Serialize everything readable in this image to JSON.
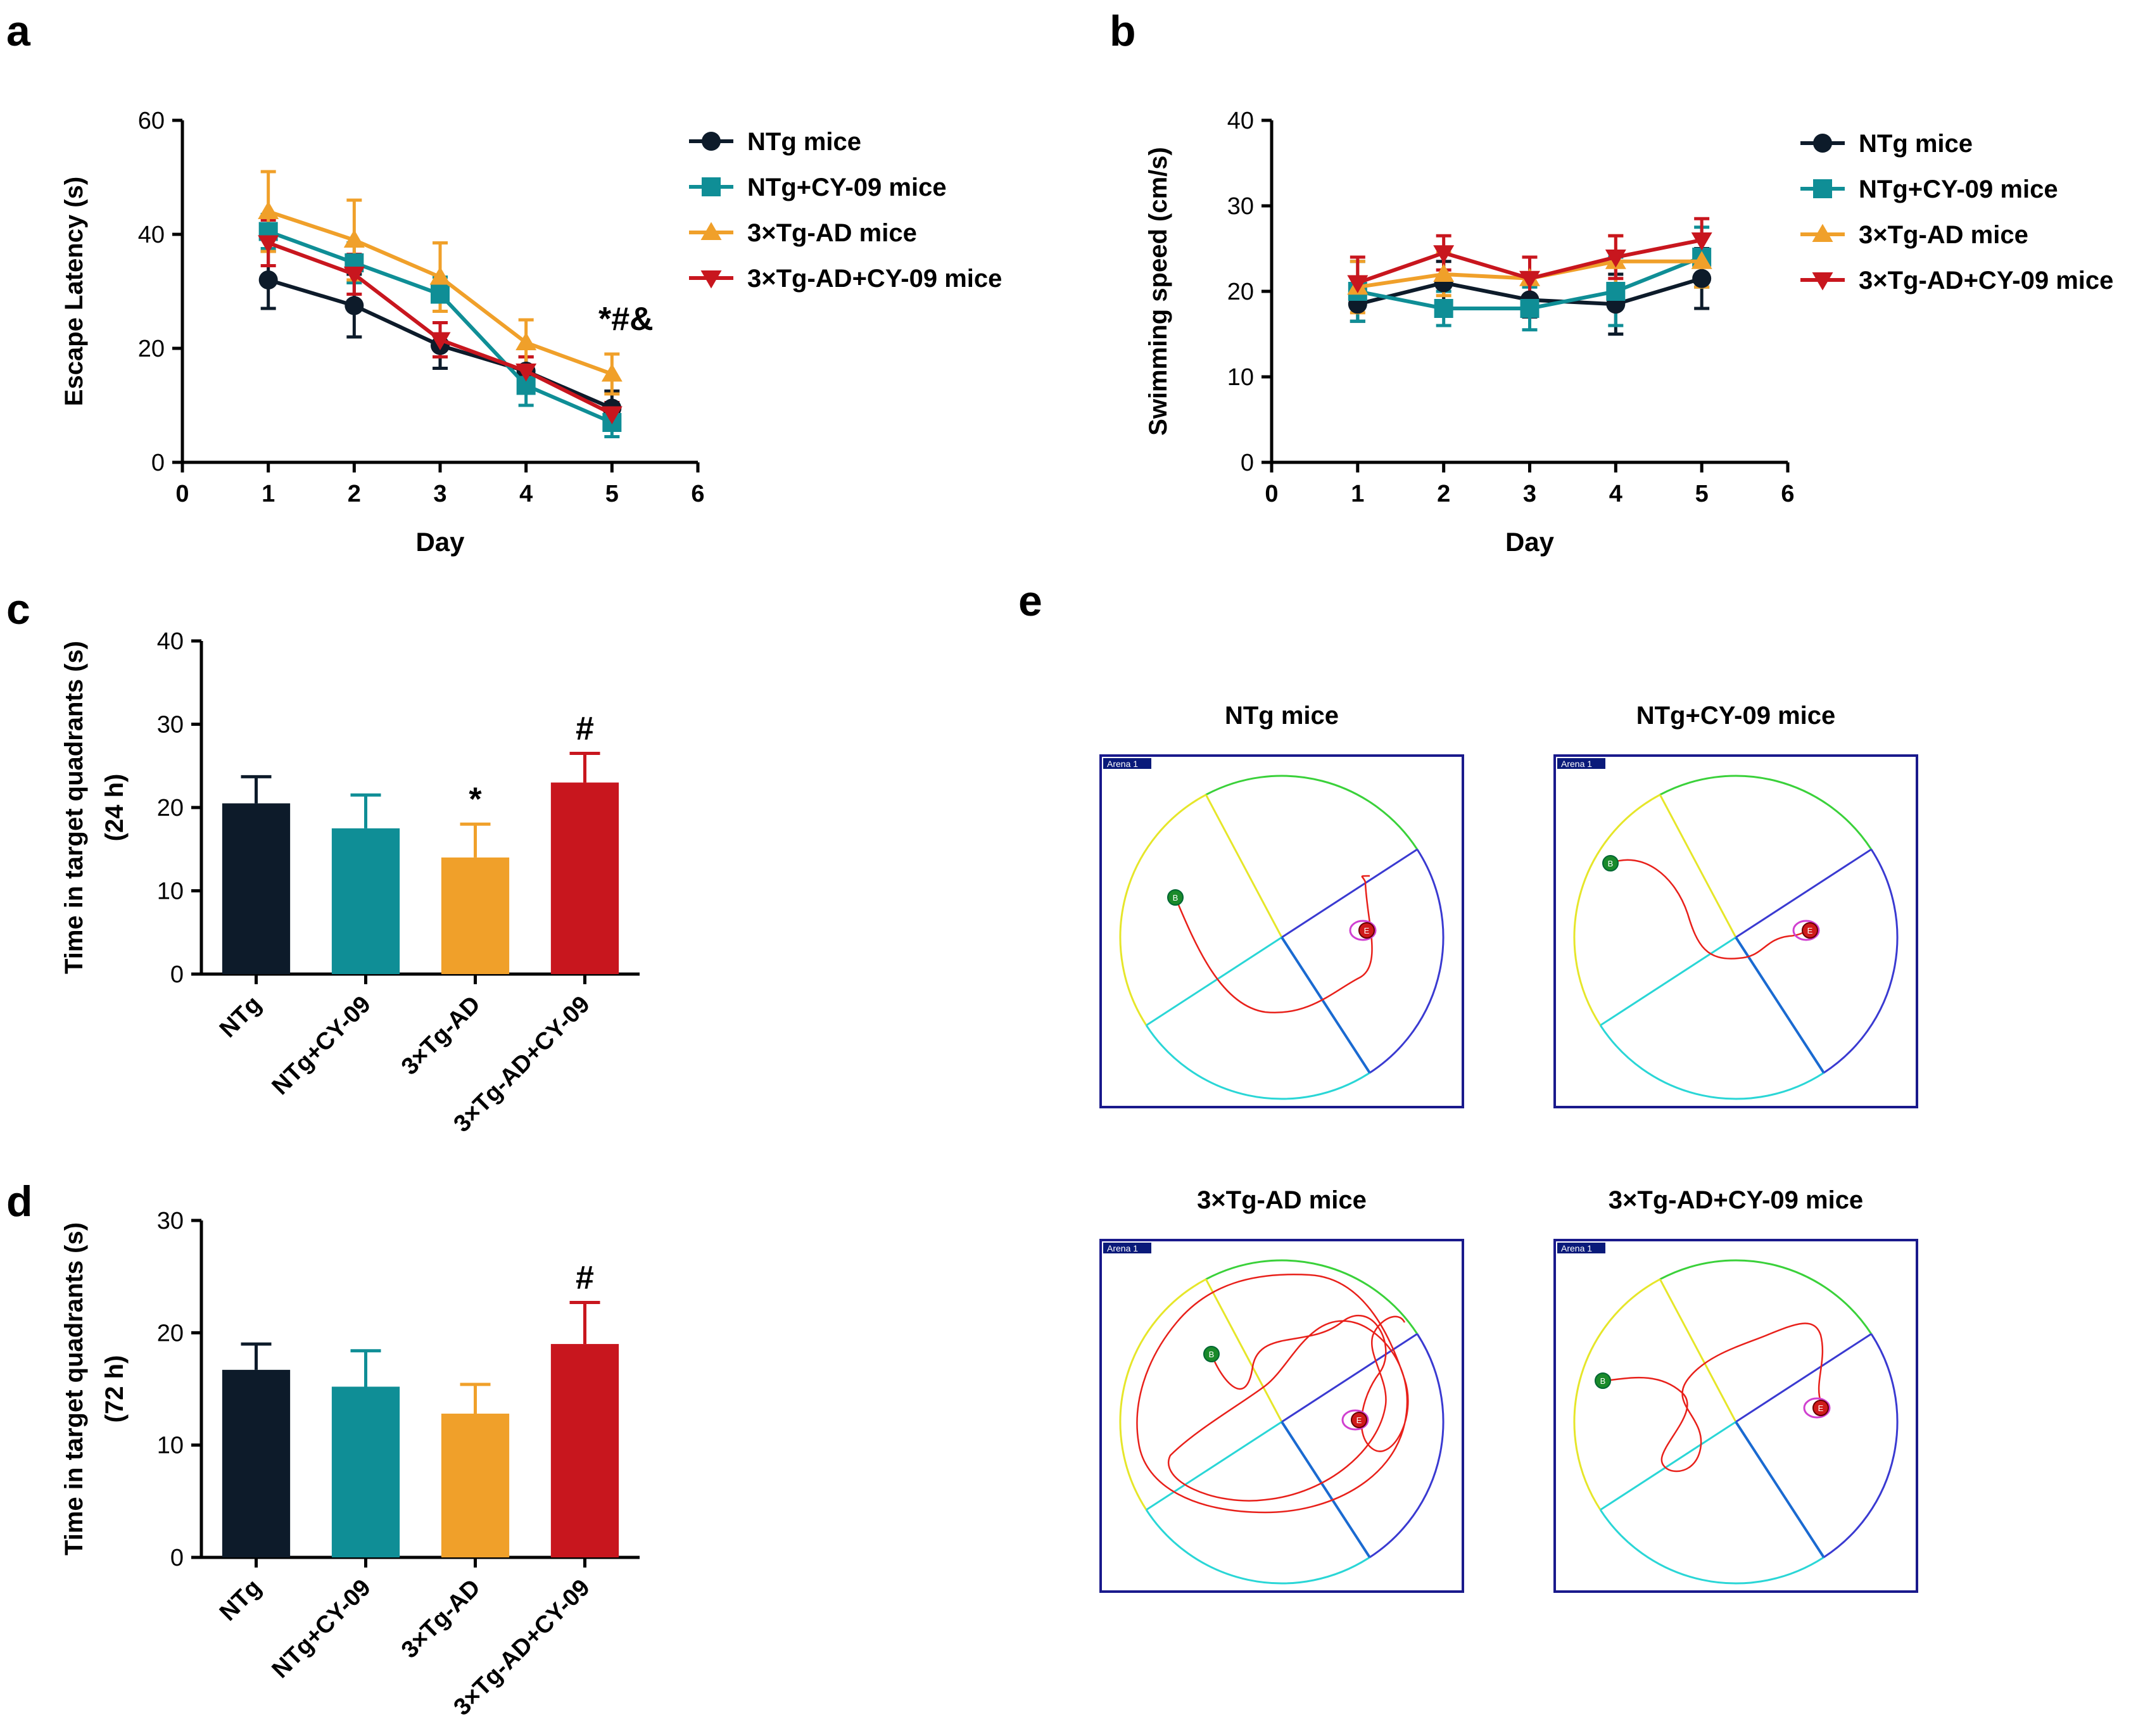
{
  "colors": {
    "ntg": "#0d1b2a",
    "ntg_cy": "#0f8e96",
    "ad": "#f0a02a",
    "ad_cy": "#c8161e",
    "axis": "#000000",
    "arena_frame": "#1a1a8c",
    "arena_tag_bg": "#0a1a7a",
    "quadrant_green": "#3ad13a",
    "quadrant_blue": "#3a3ad1",
    "quadrant_cyan": "#2ad6d6",
    "quadrant_yellow": "#e6e62a",
    "platform_line": "#1a6ad1",
    "path": "#e8201a",
    "start_marker": "#1a8a2a",
    "end_marker": "#d01a1a",
    "platform_ring": "#d040d0"
  },
  "legend_labels": [
    "NTg mice",
    "NTg+CY-09 mice",
    "3×Tg-AD mice",
    "3×Tg-AD+CY-09 mice"
  ],
  "panels": {
    "a": {
      "letter": "a"
    },
    "b": {
      "letter": "b"
    },
    "c": {
      "letter": "c"
    },
    "d": {
      "letter": "d"
    },
    "e": {
      "letter": "e",
      "arena_tag": "Arena 1",
      "start_label": "B",
      "end_label": "E",
      "titles": [
        "NTg mice",
        "NTg+CY-09 mice",
        "3×Tg-AD mice",
        "3×Tg-AD+CY-09 mice"
      ]
    }
  },
  "chart_data": [
    {
      "id": "a",
      "type": "line",
      "title": "",
      "xlabel": "Day",
      "ylabel": "Escape Latency (s)",
      "xlim": [
        0,
        6
      ],
      "ylim": [
        0,
        60
      ],
      "xticks": [
        0,
        1,
        2,
        3,
        4,
        5,
        6
      ],
      "yticks": [
        0,
        20,
        40,
        60
      ],
      "legend_position": "right",
      "x": [
        1,
        2,
        3,
        4,
        5
      ],
      "series": [
        {
          "name": "NTg mice",
          "marker": "circle",
          "values": [
            32,
            27.5,
            20.5,
            16,
            9.5
          ],
          "errors": [
            5,
            5.5,
            4,
            2.5,
            3
          ]
        },
        {
          "name": "NTg+CY-09 mice",
          "marker": "square",
          "values": [
            40.5,
            35,
            29.5,
            13.5,
            7
          ],
          "errors": [
            3,
            3.5,
            3,
            3.5,
            2.5
          ]
        },
        {
          "name": "3×Tg-AD mice",
          "marker": "triangle-up",
          "values": [
            44,
            39,
            32.5,
            21,
            15.5
          ],
          "errors": [
            7,
            7,
            6,
            4,
            3.5
          ]
        },
        {
          "name": "3×Tg-AD+CY-09 mice",
          "marker": "triangle-down",
          "values": [
            38.5,
            33,
            21.5,
            16,
            8.5
          ],
          "errors": [
            4,
            3.5,
            3,
            2.5,
            2
          ]
        }
      ],
      "annotations": [
        {
          "text": "*#&",
          "x": 5,
          "y": 21
        }
      ]
    },
    {
      "id": "b",
      "type": "line",
      "title": "",
      "xlabel": "Day",
      "ylabel": "Swimming speed (cm/s)",
      "xlim": [
        0,
        6
      ],
      "ylim": [
        0,
        40
      ],
      "xticks": [
        0,
        1,
        2,
        3,
        4,
        5,
        6
      ],
      "yticks": [
        0,
        10,
        20,
        30,
        40
      ],
      "legend_position": "right",
      "x": [
        1,
        2,
        3,
        4,
        5
      ],
      "series": [
        {
          "name": "NTg mice",
          "marker": "circle",
          "values": [
            18.5,
            21,
            19,
            18.5,
            21.5
          ],
          "errors": [
            2,
            2.5,
            2,
            3.5,
            3.5
          ]
        },
        {
          "name": "NTg+CY-09 mice",
          "marker": "square",
          "values": [
            20,
            18,
            18,
            20,
            24
          ],
          "errors": [
            3.5,
            2,
            2.5,
            4,
            3.5
          ]
        },
        {
          "name": "3×Tg-AD mice",
          "marker": "triangle-up",
          "values": [
            20.5,
            22,
            21.5,
            23.5,
            23.5
          ],
          "errors": [
            3,
            2.5,
            2.5,
            3,
            3
          ]
        },
        {
          "name": "3×Tg-AD+CY-09 mice",
          "marker": "triangle-down",
          "values": [
            21,
            24.5,
            21.5,
            24,
            26
          ],
          "errors": [
            3,
            2,
            2.5,
            2.5,
            2.5
          ]
        }
      ]
    },
    {
      "id": "c",
      "type": "bar",
      "title": "",
      "xlabel": "",
      "ylabel": "Time in target quadrants (s)",
      "ylabel2": "(24 h)",
      "ylim": [
        0,
        40
      ],
      "yticks": [
        0,
        10,
        20,
        30,
        40
      ],
      "categories": [
        "NTg",
        "NTg+CY-09",
        "3×Tg-AD",
        "3×Tg-AD+CY-09"
      ],
      "values": [
        20.5,
        17.5,
        14,
        23
      ],
      "errors": [
        3.2,
        4,
        4,
        3.5
      ],
      "annotations": [
        "",
        "",
        "*",
        "#"
      ]
    },
    {
      "id": "d",
      "type": "bar",
      "title": "",
      "xlabel": "",
      "ylabel": "Time in target quadrants (s)",
      "ylabel2": "(72 h)",
      "ylim": [
        0,
        30
      ],
      "yticks": [
        0,
        10,
        20,
        30
      ],
      "categories": [
        "NTg",
        "NTg+CY-09",
        "3×Tg-AD",
        "3×Tg-AD+CY-09"
      ],
      "values": [
        16.7,
        15.2,
        12.8,
        19
      ],
      "errors": [
        2.3,
        3.2,
        2.6,
        3.7
      ],
      "annotations": [
        "",
        "",
        "",
        "#"
      ]
    }
  ]
}
